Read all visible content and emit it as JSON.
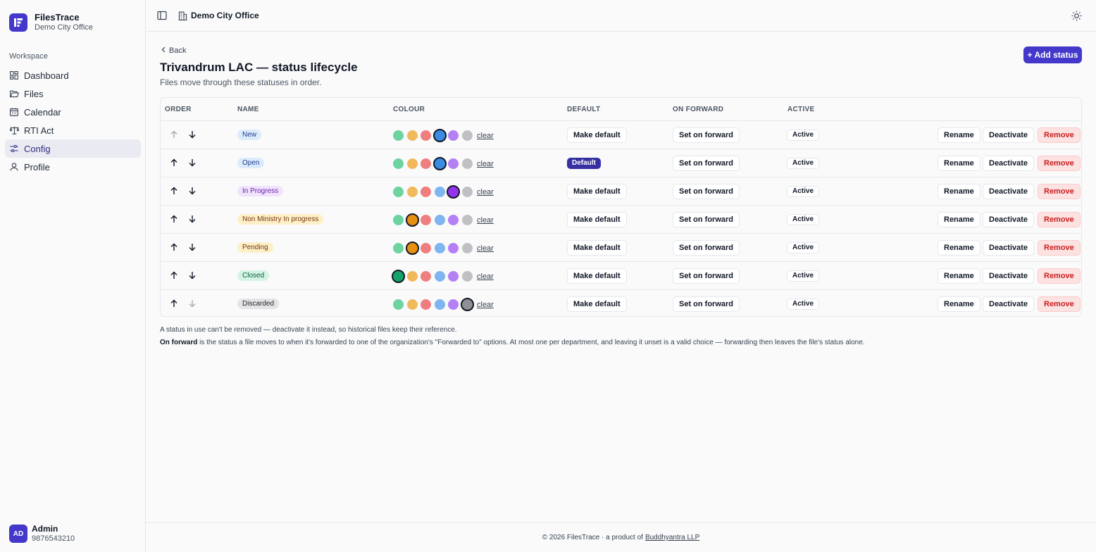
{
  "app": {
    "name": "FilesTrace",
    "org": "Demo City Office"
  },
  "sidebar": {
    "section": "Workspace",
    "items": [
      {
        "label": "Dashboard",
        "icon": "dashboard-icon"
      },
      {
        "label": "Files",
        "icon": "folder-icon"
      },
      {
        "label": "Calendar",
        "icon": "calendar-icon"
      },
      {
        "label": "RTI Act",
        "icon": "scale-icon"
      },
      {
        "label": "Config",
        "icon": "sliders-icon",
        "active": true
      },
      {
        "label": "Profile",
        "icon": "user-icon"
      }
    ],
    "user": {
      "initials": "AD",
      "name": "Admin",
      "phone": "9876543210"
    }
  },
  "topbar": {
    "org": "Demo City Office"
  },
  "main": {
    "back": "Back",
    "title": "Trivandrum LAC — status lifecycle",
    "subtitle": "Files move through these statuses in order.",
    "add_button": "+ Add status"
  },
  "table": {
    "headers": [
      "ORDER",
      "NAME",
      "COLOUR",
      "DEFAULT",
      "ON FORWARD",
      "ACTIVE"
    ],
    "palette": [
      "#6dd3a0",
      "#f1b95a",
      "#ef7f7f",
      "#7fb5f0",
      "#b57ff5",
      "#c0c0c4"
    ],
    "selected_colors": [
      "#3b8be0",
      "#3b8be0",
      "#9333ea",
      "#e89010",
      "#e89010",
      "#16a36a",
      "#8f8f95"
    ],
    "clear_label": "clear",
    "make_default_label": "Make default",
    "default_label": "Default",
    "set_on_forward_label": "Set on forward",
    "active_label": "Active",
    "rename_label": "Rename",
    "deactivate_label": "Deactivate",
    "remove_label": "Remove",
    "rows": [
      {
        "name": "New",
        "pill_bg": "#dcebfb",
        "pill_fg": "#1e3a8a",
        "selected": 3,
        "is_default": false,
        "up_disabled": true,
        "down_disabled": false
      },
      {
        "name": "Open",
        "pill_bg": "#dcebfb",
        "pill_fg": "#1e3a8a",
        "selected": 3,
        "is_default": true,
        "up_disabled": false,
        "down_disabled": false
      },
      {
        "name": "In Progress",
        "pill_bg": "#f1e3fd",
        "pill_fg": "#6b21a8",
        "selected": 4,
        "is_default": false,
        "up_disabled": false,
        "down_disabled": false
      },
      {
        "name": "Non Ministry In progress",
        "pill_bg": "#fdf0c8",
        "pill_fg": "#78350f",
        "selected": 1,
        "is_default": false,
        "up_disabled": false,
        "down_disabled": false
      },
      {
        "name": "Pending",
        "pill_bg": "#fdf0c8",
        "pill_fg": "#78350f",
        "selected": 1,
        "is_default": false,
        "up_disabled": false,
        "down_disabled": false
      },
      {
        "name": "Closed",
        "pill_bg": "#d5f4e3",
        "pill_fg": "#065f46",
        "selected": 0,
        "is_default": false,
        "up_disabled": false,
        "down_disabled": false
      },
      {
        "name": "Discarded",
        "pill_bg": "#e4e4e7",
        "pill_fg": "#27272a",
        "selected": 5,
        "is_default": false,
        "up_disabled": false,
        "down_disabled": true
      }
    ]
  },
  "notes": {
    "line1": "A status in use can't be removed — deactivate it instead, so historical files keep their reference.",
    "line2_bold": "On forward",
    "line2_rest": " is the status a file moves to when it's forwarded to one of the organization's \"Forwarded to\" options. At most one per department, and leaving it unset is a valid choice — forwarding then leaves the file's status alone."
  },
  "footer": {
    "text": "© 2026 FilesTrace · a product of",
    "link": "Buddhyantra LLP"
  }
}
